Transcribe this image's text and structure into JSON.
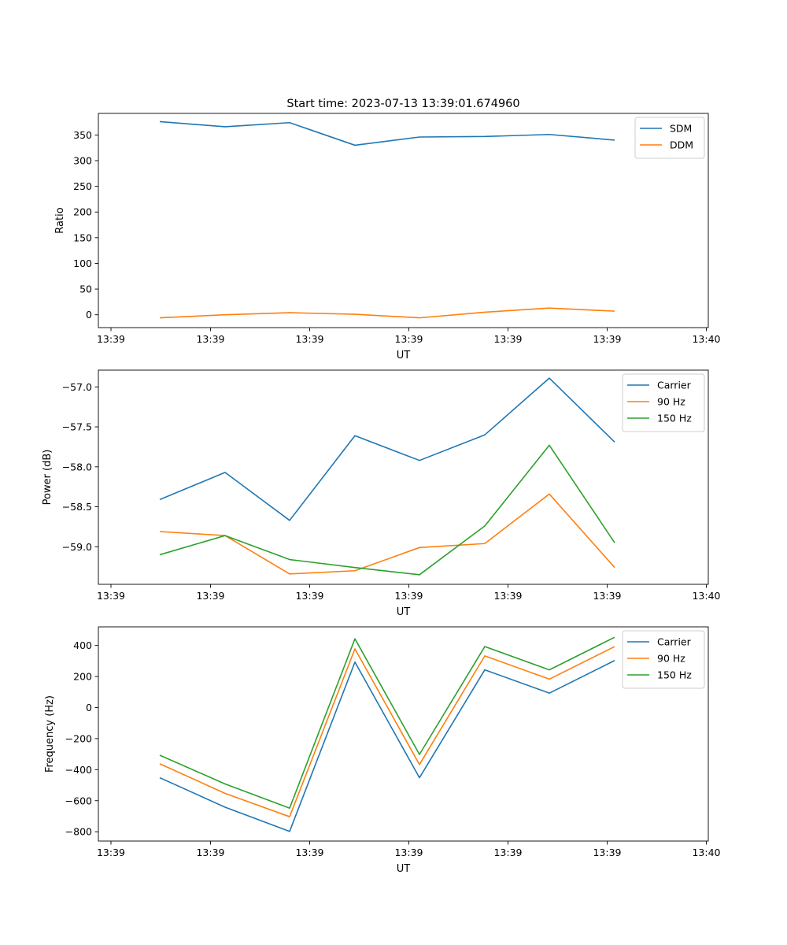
{
  "figure_title": "Start time: 2023-07-13 13:39:01.674960",
  "colors": {
    "blue": "#1f77b4",
    "orange": "#ff7f0e",
    "green": "#2ca02c"
  },
  "chart_data": [
    {
      "type": "line",
      "title": "Start time: 2023-07-13 13:39:01.674960",
      "xlabel": "UT",
      "ylabel": "Ratio",
      "x_ticks": [
        "13:39",
        "13:39",
        "13:39",
        "13:39",
        "13:39",
        "13:39",
        "13:40"
      ],
      "ylim": [
        -25,
        392
      ],
      "y_ticks": [
        0,
        50,
        100,
        150,
        200,
        250,
        300,
        350
      ],
      "legend": "top-right",
      "series": [
        {
          "name": "SDM",
          "color": "#1f77b4",
          "values": [
            376,
            366,
            374,
            330,
            346,
            347,
            351,
            340
          ]
        },
        {
          "name": "DDM",
          "color": "#ff7f0e",
          "values": [
            -6,
            0,
            4,
            1,
            -6,
            5,
            13,
            7
          ]
        }
      ]
    },
    {
      "type": "line",
      "xlabel": "UT",
      "ylabel": "Power (dB)",
      "x_ticks": [
        "13:39",
        "13:39",
        "13:39",
        "13:39",
        "13:39",
        "13:39",
        "13:40"
      ],
      "ylim": [
        -59.47,
        -56.79
      ],
      "y_ticks": [
        -57.0,
        -57.5,
        -58.0,
        -58.5,
        -59.0
      ],
      "legend": "top-right",
      "series": [
        {
          "name": "Carrier",
          "color": "#1f77b4",
          "values": [
            -58.41,
            -58.07,
            -58.67,
            -57.61,
            -57.92,
            -57.6,
            -56.89,
            -57.69
          ]
        },
        {
          "name": "90 Hz",
          "color": "#ff7f0e",
          "values": [
            -58.81,
            -58.86,
            -59.34,
            -59.3,
            -59.01,
            -58.96,
            -58.34,
            -59.26
          ]
        },
        {
          "name": "150 Hz",
          "color": "#2ca02c",
          "values": [
            -59.1,
            -58.86,
            -59.16,
            -59.26,
            -59.35,
            -58.74,
            -57.73,
            -58.95
          ]
        }
      ]
    },
    {
      "type": "line",
      "xlabel": "UT",
      "ylabel": "Frequency (Hz)",
      "x_ticks": [
        "13:39",
        "13:39",
        "13:39",
        "13:39",
        "13:39",
        "13:39",
        "13:40"
      ],
      "ylim": [
        -860,
        520
      ],
      "y_ticks": [
        400,
        200,
        0,
        -200,
        -400,
        -600,
        -800
      ],
      "legend": "top-right",
      "series": [
        {
          "name": "Carrier",
          "color": "#1f77b4",
          "values": [
            -452,
            -642,
            -798,
            293,
            -452,
            243,
            93,
            303
          ]
        },
        {
          "name": "90 Hz",
          "color": "#ff7f0e",
          "values": [
            -362,
            -553,
            -703,
            378,
            -367,
            333,
            183,
            393
          ]
        },
        {
          "name": "150 Hz",
          "color": "#2ca02c",
          "values": [
            -307,
            -492,
            -648,
            443,
            -302,
            393,
            243,
            453
          ]
        }
      ]
    }
  ]
}
